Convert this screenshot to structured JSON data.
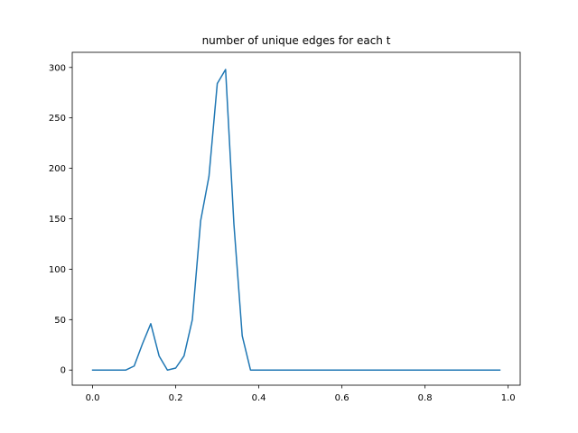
{
  "chart_data": {
    "type": "line",
    "title": "number of unique edges for each t",
    "xlabel": "",
    "ylabel": "",
    "xlim": [
      -0.049,
      1.029
    ],
    "ylim": [
      -15,
      315
    ],
    "grid": false,
    "legend": "none",
    "x_ticks": [
      0.0,
      0.2,
      0.4,
      0.6,
      0.8,
      1.0
    ],
    "x_tick_labels": [
      "0.0",
      "0.2",
      "0.4",
      "0.6",
      "0.8",
      "1.0"
    ],
    "y_ticks": [
      0,
      50,
      100,
      150,
      200,
      250,
      300
    ],
    "y_tick_labels": [
      "0",
      "50",
      "100",
      "150",
      "200",
      "250",
      "300"
    ],
    "series": [
      {
        "color": "#1f77b4",
        "x": [
          0.0,
          0.02,
          0.04,
          0.06,
          0.08,
          0.1,
          0.12,
          0.14,
          0.16,
          0.18,
          0.2,
          0.22,
          0.24,
          0.26,
          0.28,
          0.3,
          0.32,
          0.34,
          0.36,
          0.38,
          0.4,
          0.42,
          0.44,
          0.46,
          0.48,
          0.5,
          0.52,
          0.54,
          0.56,
          0.58,
          0.6,
          0.62,
          0.64,
          0.66,
          0.68,
          0.7,
          0.72,
          0.74,
          0.76,
          0.78,
          0.8,
          0.82,
          0.84,
          0.86,
          0.88,
          0.9,
          0.92,
          0.94,
          0.96,
          0.98
        ],
        "y": [
          0,
          0,
          0,
          0,
          0,
          4,
          26,
          46,
          14,
          0,
          2,
          14,
          50,
          148,
          192,
          284,
          298,
          145,
          34,
          0,
          0,
          0,
          0,
          0,
          0,
          0,
          0,
          0,
          0,
          0,
          0,
          0,
          0,
          0,
          0,
          0,
          0,
          0,
          0,
          0,
          0,
          0,
          0,
          0,
          0,
          0,
          0,
          0,
          0,
          0
        ]
      }
    ]
  }
}
